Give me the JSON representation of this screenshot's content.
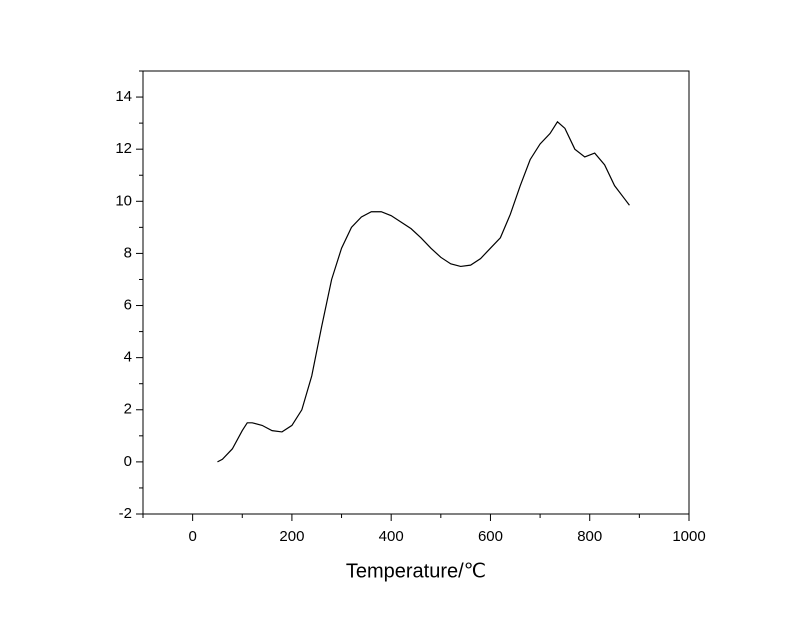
{
  "chart_data": {
    "type": "line",
    "x_label": "Temperature/℃",
    "xlim": [
      -100,
      1000
    ],
    "xticks": [
      0,
      200,
      400,
      600,
      800,
      1000
    ],
    "ylim": [
      -2,
      15
    ],
    "yticks": [
      -2,
      0,
      2,
      4,
      6,
      8,
      10,
      12,
      14
    ],
    "color": "#000000",
    "x": [
      50,
      60,
      80,
      100,
      110,
      120,
      140,
      160,
      180,
      200,
      220,
      240,
      260,
      280,
      300,
      320,
      340,
      360,
      380,
      400,
      420,
      440,
      460,
      480,
      500,
      520,
      540,
      560,
      580,
      600,
      620,
      640,
      660,
      680,
      700,
      720,
      735,
      750,
      770,
      790,
      810,
      830,
      850,
      870,
      880
    ],
    "values": [
      0.0,
      0.1,
      0.5,
      1.2,
      1.5,
      1.5,
      1.4,
      1.2,
      1.15,
      1.4,
      2.0,
      3.3,
      5.2,
      7.0,
      8.2,
      9.0,
      9.4,
      9.6,
      9.6,
      9.45,
      9.2,
      8.95,
      8.6,
      8.2,
      7.85,
      7.6,
      7.5,
      7.55,
      7.8,
      8.2,
      8.6,
      9.5,
      10.6,
      11.6,
      12.2,
      12.6,
      13.05,
      12.8,
      12.0,
      11.7,
      11.85,
      11.4,
      10.6,
      10.1,
      9.85
    ]
  }
}
